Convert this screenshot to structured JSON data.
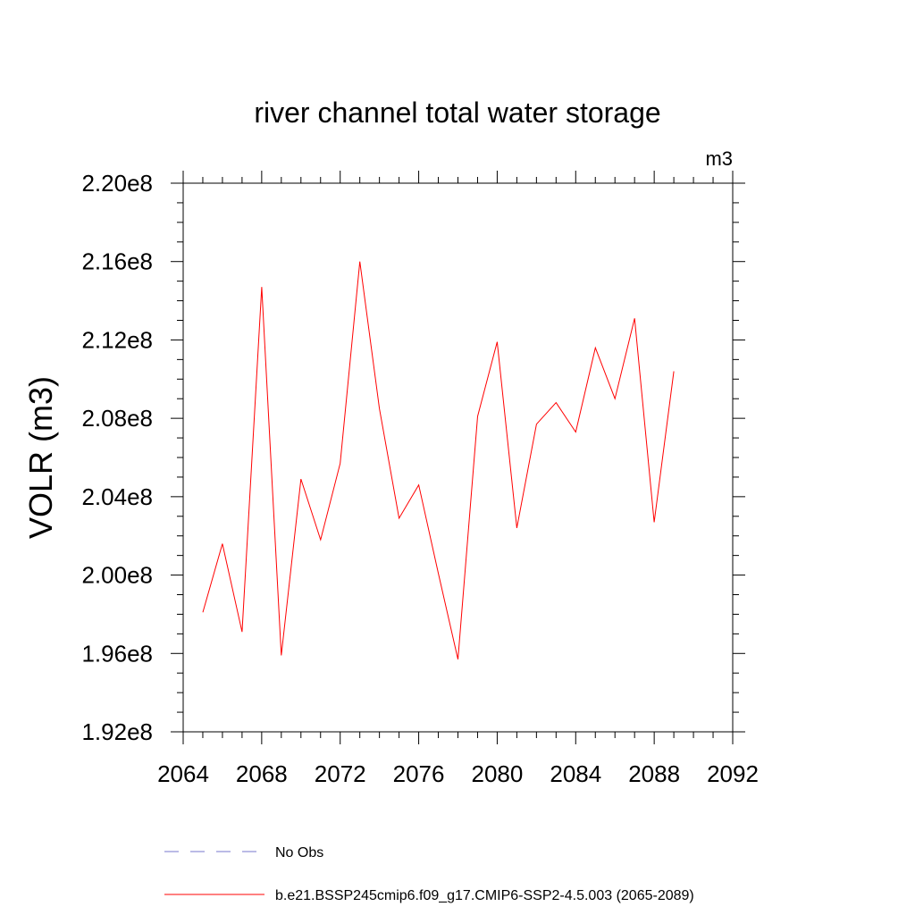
{
  "chart_data": {
    "type": "line",
    "title": "river channel total water storage",
    "units": "m3",
    "ylabel": "VOLR  (m3)",
    "xlabel": "",
    "xlim": [
      2064,
      2092
    ],
    "ylim": [
      192000000.0,
      220000000.0
    ],
    "x_ticks": [
      2064,
      2068,
      2072,
      2076,
      2080,
      2084,
      2088,
      2092
    ],
    "x_tick_labels": [
      "2064",
      "2068",
      "2072",
      "2076",
      "2080",
      "2084",
      "2088",
      "2092"
    ],
    "y_ticks": [
      192000000.0,
      196000000.0,
      200000000.0,
      204000000.0,
      208000000.0,
      212000000.0,
      216000000.0,
      220000000.0
    ],
    "y_tick_labels": [
      "1.92e8",
      "1.96e8",
      "2.00e8",
      "2.04e8",
      "2.08e8",
      "2.12e8",
      "2.16e8",
      "2.20e8"
    ],
    "grid": false,
    "legend_position": "bottom",
    "series": [
      {
        "name": "b.e21.BSSP245cmip6.f09_g17.CMIP6-SSP2-4.5.003 (2065-2089)",
        "color": "#ff0000",
        "style": "solid",
        "x": [
          2065,
          2066,
          2067,
          2068,
          2069,
          2070,
          2071,
          2072,
          2073,
          2074,
          2075,
          2076,
          2077,
          2078,
          2079,
          2080,
          2081,
          2082,
          2083,
          2084,
          2085,
          2086,
          2087,
          2088,
          2089
        ],
        "y": [
          198100000.0,
          201600000.0,
          197100000.0,
          214700000.0,
          195900000.0,
          204900000.0,
          201800000.0,
          205700000.0,
          216000000.0,
          208500000.0,
          202900000.0,
          204600000.0,
          200100000.0,
          195700000.0,
          208100000.0,
          211900000.0,
          202400000.0,
          207700000.0,
          208800000.0,
          207300000.0,
          211600000.0,
          209000000.0,
          213100000.0,
          202700000.0,
          210400000.0
        ]
      }
    ],
    "legend": [
      {
        "label": "No Obs",
        "color": "#7777cc",
        "style": "dashed"
      },
      {
        "label": "b.e21.BSSP245cmip6.f09_g17.CMIP6-SSP2-4.5.003 (2065-2089)",
        "color": "#ff0000",
        "style": "solid"
      }
    ]
  }
}
